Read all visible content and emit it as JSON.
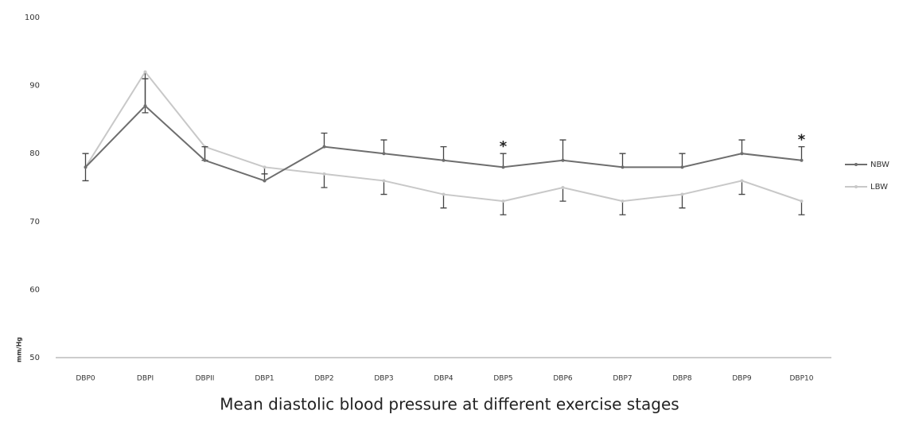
{
  "chart_data": {
    "type": "line",
    "title": "Mean diastolic blood pressure at different exercise stages",
    "y_label": "mm/Hg",
    "categories": [
      "DBP0",
      "DBPI",
      "DBPII",
      "DBP1",
      "DBP2",
      "DBP3",
      "DBP4",
      "DBP5",
      "DBP6",
      "DBP7",
      "DBP8",
      "DBP9",
      "DBP10"
    ],
    "series": [
      {
        "name": "NBW",
        "color": "#6e6e6e",
        "error_direction": "plus",
        "values": [
          78,
          87,
          79,
          76,
          81,
          80,
          79,
          78,
          79,
          78,
          78,
          80,
          79
        ],
        "errors": [
          2,
          4,
          2,
          1,
          2,
          2,
          2,
          2,
          3,
          2,
          2,
          2,
          2
        ]
      },
      {
        "name": "LBW",
        "color": "#c8c8c8",
        "error_direction": "minus",
        "values": [
          78,
          92,
          81,
          78,
          77,
          76,
          74,
          73,
          75,
          73,
          74,
          76,
          73
        ],
        "errors": [
          2,
          6,
          2,
          1,
          2,
          2,
          2,
          2,
          2,
          2,
          2,
          2,
          2
        ]
      }
    ],
    "annotations": [
      {
        "text": "*",
        "category": "DBP5"
      },
      {
        "text": "*",
        "category": "DBP10"
      }
    ],
    "ylim": [
      50,
      100
    ],
    "yticks": [
      50,
      60,
      70,
      80,
      90,
      100
    ],
    "grid": false,
    "legend": "right"
  }
}
